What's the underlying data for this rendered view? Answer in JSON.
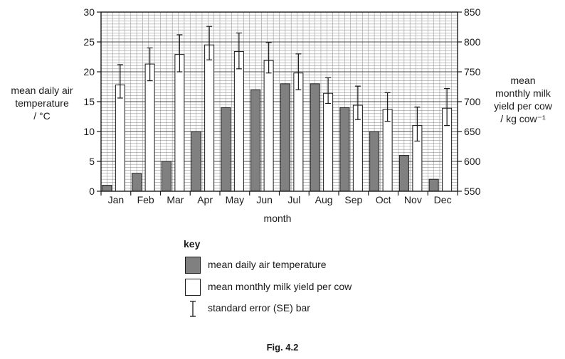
{
  "chart_data": {
    "type": "bar",
    "categories": [
      "Jan",
      "Feb",
      "Mar",
      "Apr",
      "May",
      "Jun",
      "Jul",
      "Aug",
      "Sep",
      "Oct",
      "Nov",
      "Dec"
    ],
    "xlabel": "month",
    "ylabel_left": [
      "mean daily air",
      "temperature",
      "/ °C"
    ],
    "ylabel_right": [
      "mean",
      "monthly milk",
      "yield per cow",
      "/ kg cow⁻¹"
    ],
    "y_left": {
      "range": [
        0,
        30
      ],
      "ticks": [
        "0",
        "5",
        "10",
        "15",
        "20",
        "25",
        "30"
      ]
    },
    "y_right": {
      "range": [
        550,
        850
      ],
      "ticks": [
        "550",
        "600",
        "650",
        "700",
        "750",
        "800",
        "850"
      ]
    },
    "grid": true,
    "series": [
      {
        "name": "mean daily air temperature",
        "axis": "left",
        "color": "#808080",
        "values": [
          1,
          3,
          5,
          10,
          14,
          17,
          18,
          18,
          14,
          10,
          6,
          2
        ]
      },
      {
        "name": "mean monthly milk yield per cow",
        "axis": "right",
        "color": "#ffffff",
        "values": [
          728,
          763,
          779,
          795,
          784,
          769,
          748,
          714,
          694,
          687,
          660,
          689
        ],
        "error_bars": [
          [
            706,
            762
          ],
          [
            735,
            790
          ],
          [
            750,
            812
          ],
          [
            770,
            826
          ],
          [
            755,
            815
          ],
          [
            748,
            799
          ],
          [
            720,
            780
          ],
          [
            697,
            740
          ],
          [
            670,
            726
          ],
          [
            667,
            715
          ],
          [
            634,
            691
          ],
          [
            660,
            722
          ]
        ]
      }
    ]
  },
  "key": {
    "title": "key",
    "items": [
      {
        "label": "mean daily air temperature",
        "swatch": "#808080"
      },
      {
        "label": "mean monthly milk yield per cow",
        "swatch": "#ffffff"
      },
      {
        "label": "standard error (SE) bar"
      }
    ]
  },
  "caption": "Fig. 4.2"
}
